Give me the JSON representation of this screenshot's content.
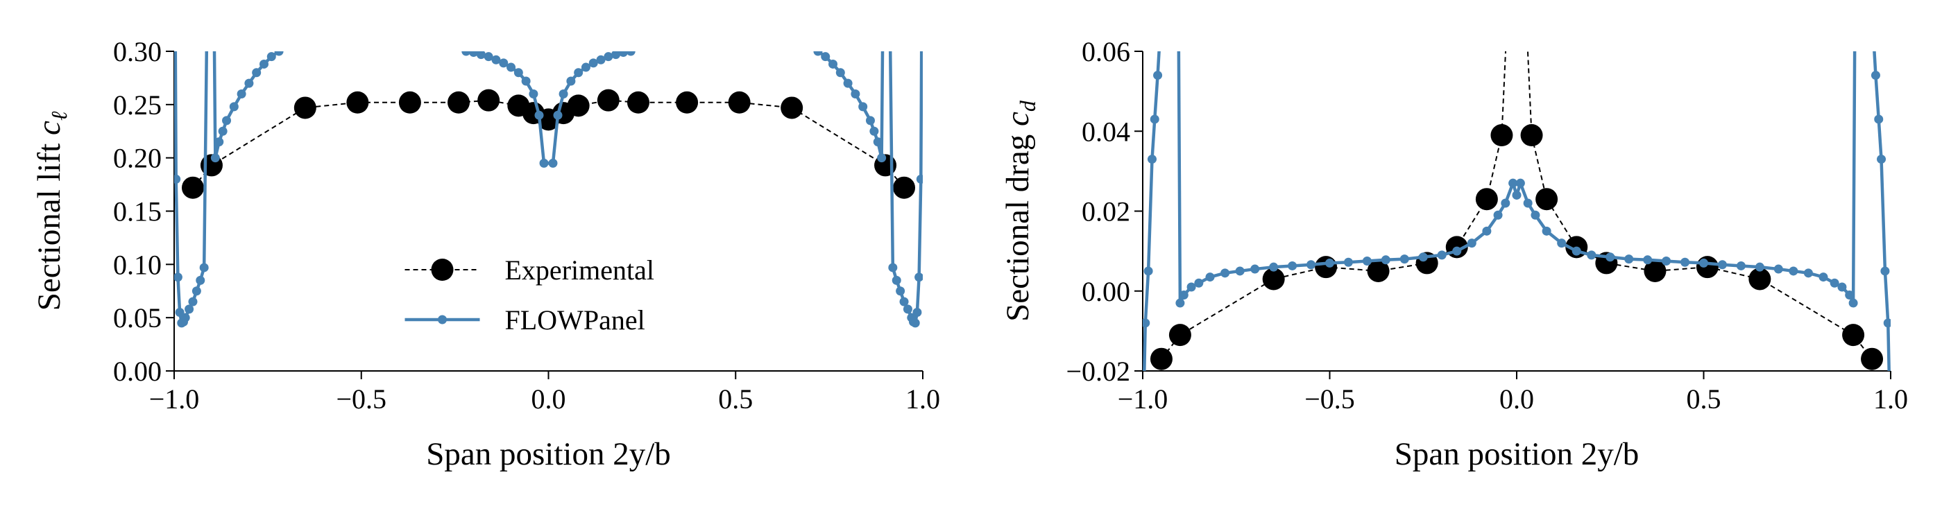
{
  "chart_data": [
    {
      "type": "line",
      "xlabel": "Span position 2y/b",
      "ylabel": {
        "text": "Sectional lift ",
        "symbol": "c",
        "subscript": "ℓ"
      },
      "xlim": [
        -1,
        1
      ],
      "xticks": [
        {
          "value": -1,
          "label": "−1.0"
        },
        {
          "value": -0.5,
          "label": "−0.5"
        },
        {
          "value": 0,
          "label": "0.0"
        },
        0.5,
        {
          "value": 1,
          "label": "1.0"
        }
      ],
      "ylim": [
        0,
        0.3
      ],
      "yticks": [
        {
          "value": 0,
          "label": "0.00"
        },
        {
          "value": 0.05,
          "label": "0.05"
        },
        {
          "value": 0.1,
          "label": "0.10"
        },
        {
          "value": 0.15,
          "label": "0.15"
        },
        {
          "value": 0.2,
          "label": "0.20"
        },
        {
          "value": 0.25,
          "label": "0.25"
        },
        {
          "value": 0.3,
          "label": "0.30"
        }
      ],
      "legend": "lower center",
      "series": [
        {
          "name": "Experimental",
          "color": "#000000",
          "style": "dashed",
          "x": [
            -0.95,
            -0.9,
            -0.65,
            -0.51,
            -0.37,
            -0.24,
            -0.16,
            -0.08,
            -0.04,
            0,
            0.04,
            0.08,
            0.16,
            0.24,
            0.37,
            0.51,
            0.65,
            0.9,
            0.95
          ],
          "values": [
            0.172,
            0.193,
            0.247,
            0.252,
            0.252,
            0.252,
            0.254,
            0.249,
            0.242,
            0.236,
            0.242,
            0.249,
            0.254,
            0.252,
            0.252,
            0.252,
            0.247,
            0.193,
            0.172
          ]
        },
        {
          "name": "FLOWPanel",
          "color": "#4682b4",
          "style": "solid",
          "x": [
            -0.998,
            -0.995,
            -0.99,
            -0.985,
            -0.98,
            -0.975,
            -0.97,
            -0.96,
            -0.95,
            -0.94,
            -0.93,
            -0.92,
            -0.91,
            -0.895,
            -0.89,
            -0.88,
            -0.87,
            -0.86,
            -0.84,
            -0.82,
            -0.8,
            -0.78,
            -0.76,
            -0.74,
            -0.72,
            -0.6,
            -0.45,
            -0.3,
            -0.22,
            -0.2,
            -0.18,
            -0.16,
            -0.14,
            -0.12,
            -0.1,
            -0.08,
            -0.06,
            -0.04,
            -0.025,
            -0.012,
            0.012,
            0.025,
            0.04,
            0.06,
            0.08,
            0.1,
            0.12,
            0.14,
            0.16,
            0.18,
            0.2,
            0.22,
            0.3,
            0.45,
            0.6,
            0.72,
            0.74,
            0.76,
            0.78,
            0.8,
            0.82,
            0.84,
            0.86,
            0.87,
            0.88,
            0.89,
            0.895,
            0.91,
            0.92,
            0.93,
            0.94,
            0.95,
            0.96,
            0.97,
            0.975,
            0.98,
            0.985,
            0.99,
            0.995,
            0.998
          ],
          "values": [
            0.4,
            0.18,
            0.088,
            0.055,
            0.045,
            0.046,
            0.05,
            0.058,
            0.065,
            0.075,
            0.085,
            0.097,
            0.4,
            0.4,
            0.2,
            0.215,
            0.225,
            0.235,
            0.248,
            0.26,
            0.27,
            0.28,
            0.288,
            0.295,
            0.3,
            0.32,
            0.33,
            0.32,
            0.3,
            0.299,
            0.297,
            0.295,
            0.292,
            0.289,
            0.285,
            0.28,
            0.272,
            0.26,
            0.24,
            0.195,
            0.195,
            0.24,
            0.26,
            0.272,
            0.28,
            0.285,
            0.289,
            0.292,
            0.295,
            0.297,
            0.299,
            0.3,
            0.32,
            0.33,
            0.32,
            0.3,
            0.295,
            0.288,
            0.28,
            0.27,
            0.26,
            0.248,
            0.235,
            0.225,
            0.215,
            0.2,
            0.4,
            0.4,
            0.097,
            0.085,
            0.075,
            0.065,
            0.058,
            0.05,
            0.046,
            0.045,
            0.055,
            0.088,
            0.18,
            0.4
          ]
        }
      ]
    },
    {
      "type": "line",
      "xlabel": "Span position 2y/b",
      "ylabel": {
        "text": "Sectional drag ",
        "symbol": "c",
        "subscript": "d"
      },
      "xlim": [
        -1,
        1
      ],
      "xticks": [
        {
          "value": -1,
          "label": "−1.0"
        },
        {
          "value": -0.5,
          "label": "−0.5"
        },
        {
          "value": 0,
          "label": "0.0"
        },
        0.5,
        {
          "value": 1,
          "label": "1.0"
        }
      ],
      "ylim": [
        -0.02,
        0.06
      ],
      "yticks": [
        {
          "value": -0.02,
          "label": "−0.02"
        },
        {
          "value": 0,
          "label": "0.00"
        },
        0.02,
        0.04,
        0.06
      ],
      "series": [
        {
          "name": "Experimental",
          "color": "#000000",
          "style": "dashed",
          "x": [
            -0.95,
            -0.9,
            -0.65,
            -0.51,
            -0.37,
            -0.24,
            -0.16,
            -0.08,
            -0.04,
            0,
            0.04,
            0.08,
            0.16,
            0.24,
            0.37,
            0.51,
            0.65,
            0.9,
            0.95
          ],
          "values": [
            -0.017,
            -0.011,
            0.003,
            0.006,
            0.005,
            0.007,
            0.011,
            0.023,
            0.039,
            0.12,
            0.039,
            0.023,
            0.011,
            0.007,
            0.005,
            0.006,
            0.003,
            -0.011,
            -0.017
          ]
        },
        {
          "name": "FLOWPanel",
          "color": "#4682b4",
          "style": "solid",
          "x": [
            -0.998,
            -0.993,
            -0.985,
            -0.975,
            -0.968,
            -0.96,
            -0.95,
            -0.905,
            -0.9,
            -0.89,
            -0.87,
            -0.85,
            -0.82,
            -0.78,
            -0.74,
            -0.7,
            -0.65,
            -0.6,
            -0.55,
            -0.5,
            -0.45,
            -0.4,
            -0.35,
            -0.3,
            -0.25,
            -0.2,
            -0.16,
            -0.12,
            -0.08,
            -0.05,
            -0.03,
            -0.01,
            0,
            0.01,
            0.03,
            0.05,
            0.08,
            0.12,
            0.16,
            0.2,
            0.25,
            0.3,
            0.35,
            0.4,
            0.45,
            0.5,
            0.55,
            0.6,
            0.65,
            0.7,
            0.74,
            0.78,
            0.82,
            0.85,
            0.87,
            0.89,
            0.9,
            0.905,
            0.95,
            0.96,
            0.968,
            0.975,
            0.985,
            0.993,
            0.998
          ],
          "values": [
            -0.03,
            -0.008,
            0.005,
            0.033,
            0.043,
            0.054,
            0.07,
            0.08,
            -0.003,
            -0.001,
            0.001,
            0.002,
            0.0035,
            0.0045,
            0.005,
            0.0055,
            0.006,
            0.0063,
            0.0066,
            0.007,
            0.0072,
            0.0075,
            0.0078,
            0.008,
            0.0085,
            0.009,
            0.01,
            0.012,
            0.015,
            0.019,
            0.022,
            0.027,
            0.024,
            0.027,
            0.022,
            0.019,
            0.015,
            0.012,
            0.01,
            0.009,
            0.0085,
            0.008,
            0.0078,
            0.0075,
            0.0072,
            0.007,
            0.0066,
            0.0063,
            0.006,
            0.0055,
            0.005,
            0.0045,
            0.0035,
            0.002,
            0.001,
            -0.001,
            -0.003,
            0.08,
            0.07,
            0.054,
            0.043,
            0.033,
            0.005,
            -0.008,
            -0.03
          ]
        }
      ]
    }
  ]
}
